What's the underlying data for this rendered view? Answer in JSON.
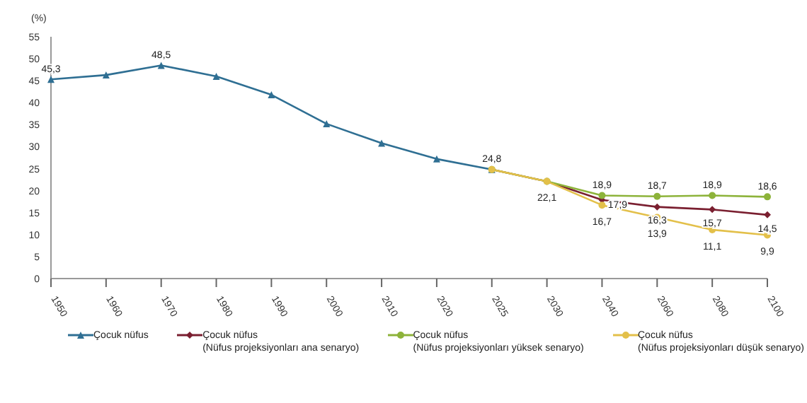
{
  "chart_data": {
    "type": "line",
    "ylabel": "(%)",
    "categories": [
      "1950",
      "1960",
      "1970",
      "1980",
      "1990",
      "2000",
      "2010",
      "2020",
      "2025",
      "2030",
      "2040",
      "2060",
      "2080",
      "2100"
    ],
    "series": [
      {
        "name": "Çocuk nüfus",
        "color": "#2f6f93",
        "marker": "triangle",
        "values": [
          45.3,
          46.3,
          48.5,
          46.0,
          41.8,
          35.2,
          30.8,
          27.2,
          24.8,
          null,
          null,
          null,
          null,
          null
        ],
        "value_labels": [
          "45,3",
          null,
          "48,5",
          null,
          null,
          null,
          null,
          null,
          "24,8",
          null,
          null,
          null,
          null,
          null
        ]
      },
      {
        "name": "Çocuk nüfus\n(Nüfus projeksiyonları ana senaryo)",
        "color": "#7a1f30",
        "marker": "diamond",
        "values": [
          null,
          null,
          null,
          null,
          null,
          null,
          null,
          null,
          24.8,
          22.1,
          17.9,
          16.3,
          15.7,
          14.5
        ],
        "value_labels": [
          null,
          null,
          null,
          null,
          null,
          null,
          null,
          null,
          null,
          "22,1",
          "17,9",
          "16,3",
          "15,7",
          "14,5"
        ]
      },
      {
        "name": "Çocuk nüfus\n(Nüfus projeksiyonları yüksek senaryo)",
        "color": "#8db33a",
        "marker": "circle",
        "values": [
          null,
          null,
          null,
          null,
          null,
          null,
          null,
          null,
          24.8,
          22.1,
          18.9,
          18.7,
          18.9,
          18.6
        ],
        "value_labels": [
          null,
          null,
          null,
          null,
          null,
          null,
          null,
          null,
          null,
          null,
          "18,9",
          "18,7",
          "18,9",
          "18,6"
        ]
      },
      {
        "name": "Çocuk nüfus\n(Nüfus projeksiyonları düşük senaryo)",
        "color": "#e3c04a",
        "marker": "circle",
        "values": [
          null,
          null,
          null,
          null,
          null,
          null,
          null,
          null,
          24.8,
          22.1,
          16.7,
          13.9,
          11.1,
          9.9
        ],
        "value_labels": [
          null,
          null,
          null,
          null,
          null,
          null,
          null,
          null,
          null,
          null,
          "16,7",
          "13,9",
          "11,1",
          "9,9"
        ]
      }
    ],
    "ylim": [
      0,
      55
    ],
    "yticks": [
      0,
      5,
      10,
      15,
      20,
      25,
      30,
      35,
      40,
      45,
      50,
      55
    ],
    "grid": false,
    "legend": "bottom"
  }
}
